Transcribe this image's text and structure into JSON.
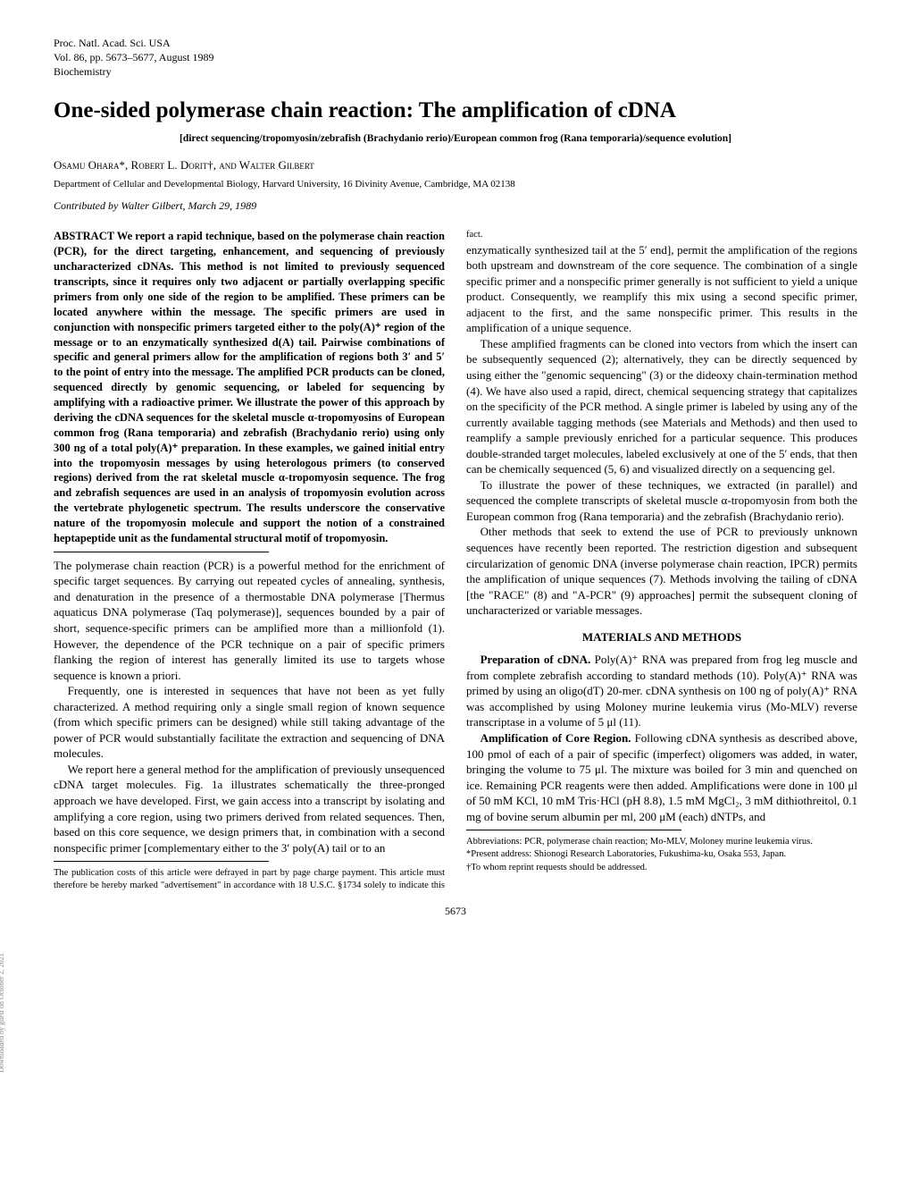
{
  "header": {
    "line1": "Proc. Natl. Acad. Sci. USA",
    "line2": "Vol. 86, pp. 5673–5677, August 1989",
    "line3": "Biochemistry"
  },
  "title": "One-sided polymerase chain reaction: The amplification of cDNA",
  "subtitle": "[direct sequencing/tropomyosin/zebrafish (Brachydanio rerio)/European common frog (Rana temporaria)/sequence evolution]",
  "authors": "Osamu Ohara*, Robert L. Dorit†, and Walter Gilbert",
  "affiliation": "Department of Cellular and Developmental Biology, Harvard University, 16 Divinity Avenue, Cambridge, MA 02138",
  "contributed": "Contributed by Walter Gilbert, March 29, 1989",
  "abstract_label": "ABSTRACT",
  "abstract": "      We report a rapid technique, based on the polymerase chain reaction (PCR), for the direct targeting, enhancement, and sequencing of previously uncharacterized cDNAs. This method is not limited to previously sequenced transcripts, since it requires only two adjacent or partially overlapping specific primers from only one side of the region to be amplified. These primers can be located anywhere within the message. The specific primers are used in conjunction with nonspecific primers targeted either to the poly(A)⁺ region of the message or to an enzymatically synthesized d(A) tail. Pairwise combinations of specific and general primers allow for the amplification of regions both 3′ and 5′ to the point of entry into the message. The amplified PCR products can be cloned, sequenced directly by genomic sequencing, or labeled for sequencing by amplifying with a radioactive primer. We illustrate the power of this approach by deriving the cDNA sequences for the skeletal muscle α-tropomyosins of European common frog (Rana temporaria) and zebrafish (Brachydanio rerio) using only 300 ng of a total poly(A)⁺ preparation. In these examples, we gained initial entry into the tropomyosin messages by using heterologous primers (to conserved regions) derived from the rat skeletal muscle α-tropomyosin sequence. The frog and zebrafish sequences are used in an analysis of tropomyosin evolution across the vertebrate phylogenetic spectrum. The results underscore the conservative nature of the tropomyosin molecule and support the notion of a constrained heptapeptide unit as the fundamental structural motif of tropomyosin.",
  "intro_p1": "The polymerase chain reaction (PCR) is a powerful method for the enrichment of specific target sequences. By carrying out repeated cycles of annealing, synthesis, and denaturation in the presence of a thermostable DNA polymerase [Thermus aquaticus DNA polymerase (Taq polymerase)], sequences bounded by a pair of short, sequence-specific primers can be amplified more than a millionfold (1). However, the dependence of the PCR technique on a pair of specific primers flanking the region of interest has generally limited its use to targets whose sequence is known a priori.",
  "intro_p2": "Frequently, one is interested in sequences that have not been as yet fully characterized. A method requiring only a single small region of known sequence (from which specific primers can be designed) while still taking advantage of the power of PCR would substantially facilitate the extraction and sequencing of DNA molecules.",
  "intro_p3": "We report here a general method for the amplification of previously unsequenced cDNA target molecules. Fig. 1a illustrates schematically the three-pronged approach we have developed. First, we gain access into a transcript by isolating and amplifying a core region, using two primers derived from related sequences. Then, based on this core sequence, we design primers that, in combination with a second nonspecific primer [complementary either to the 3′ poly(A) tail or to an",
  "col2_p1": "enzymatically synthesized tail at the 5′ end], permit the amplification of the regions both upstream and downstream of the core sequence. The combination of a single specific primer and a nonspecific primer generally is not sufficient to yield a unique product. Consequently, we reamplify this mix using a second specific primer, adjacent to the first, and the same nonspecific primer. This results in the amplification of a unique sequence.",
  "col2_p2": "These amplified fragments can be cloned into vectors from which the insert can be subsequently sequenced (2); alternatively, they can be directly sequenced by using either the \"genomic sequencing\" (3) or the dideoxy chain-termination method (4). We have also used a rapid, direct, chemical sequencing strategy that capitalizes on the specificity of the PCR method. A single primer is labeled by using any of the currently available tagging methods (see Materials and Methods) and then used to reamplify a sample previously enriched for a particular sequence. This produces double-stranded target molecules, labeled exclusively at one of the 5′ ends, that then can be chemically sequenced (5, 6) and visualized directly on a sequencing gel.",
  "col2_p3": "To illustrate the power of these techniques, we extracted (in parallel) and sequenced the complete transcripts of skeletal muscle α-tropomyosin from both the European common frog (Rana temporaria) and the zebrafish (Brachydanio rerio).",
  "col2_p4": "Other methods that seek to extend the use of PCR to previously unknown sequences have recently been reported. The restriction digestion and subsequent circularization of genomic DNA (inverse polymerase chain reaction, IPCR) permits the amplification of unique sequences (7). Methods involving the tailing of cDNA [the \"RACE\" (8) and \"A-PCR\" (9) approaches] permit the subsequent cloning of uncharacterized or variable messages.",
  "methods_head": "MATERIALS AND METHODS",
  "methods_p1_label": "Preparation of cDNA.",
  "methods_p1": " Poly(A)⁺ RNA was prepared from frog leg muscle and from complete zebrafish according to standard methods (10). Poly(A)⁺ RNA was primed by using an oligo(dT) 20-mer. cDNA synthesis on 100 ng of poly(A)⁺ RNA was accomplished by using Moloney murine leukemia virus (Mo-MLV) reverse transcriptase in a volume of 5 μl (11).",
  "methods_p2_label": "Amplification of Core Region.",
  "methods_p2": " Following cDNA synthesis as described above, 100 pmol of each of a pair of specific (imperfect) oligomers was added, in water, bringing the volume to 75 μl. The mixture was boiled for 3 min and quenched on ice. Remaining PCR reagents were then added. Amplifications were done in 100 μl of 50 mM KCl, 10 mM Tris·HCl (pH 8.8), 1.5 mM MgCl₂, 3 mM dithiothreitol, 0.1 mg of bovine serum albumin per ml, 200 μM (each) dNTPs, and",
  "pub_footnote": "The publication costs of this article were defrayed in part by page charge payment. This article must therefore be hereby marked \"advertisement\" in accordance with 18 U.S.C. §1734 solely to indicate this fact.",
  "abbrev_footnote": "Abbreviations: PCR, polymerase chain reaction; Mo-MLV, Moloney murine leukemia virus.",
  "addr_footnote1": "*Present address: Shionogi Research Laboratories, Fukushima-ku, Osaka 553, Japan.",
  "addr_footnote2": "†To whom reprint requests should be addressed.",
  "page_number": "5673",
  "side_text": "Downloaded by guest on October 2, 2021"
}
